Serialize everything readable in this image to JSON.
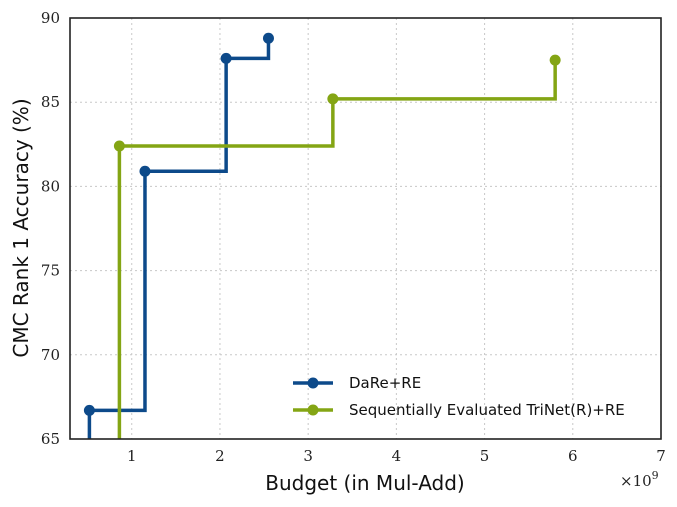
{
  "chart_data": {
    "type": "line",
    "step": "post",
    "xlabel": "Budget (in Mul-Add)",
    "ylabel": "CMC Rank 1 Accuracy (%)",
    "x_multiplier": "×10",
    "x_multiplier_exp": "9",
    "xlim": [
      0.3,
      7
    ],
    "ylim": [
      65,
      90
    ],
    "xticks": [
      1,
      2,
      3,
      4,
      5,
      6,
      7
    ],
    "yticks": [
      65,
      70,
      75,
      80,
      85,
      90
    ],
    "grid": true,
    "legend_position": "lower-right",
    "series": [
      {
        "name": "DaRe+RE",
        "color": "#0d4a8a",
        "x": [
          0.52,
          1.15,
          2.07,
          2.55
        ],
        "y": [
          66.7,
          80.9,
          87.6,
          88.8
        ]
      },
      {
        "name": "Sequentially Evaluated TriNet(R)+RE",
        "color": "#84a514",
        "x": [
          0.86,
          3.28,
          5.8
        ],
        "y": [
          82.4,
          85.2,
          87.5
        ]
      }
    ]
  }
}
